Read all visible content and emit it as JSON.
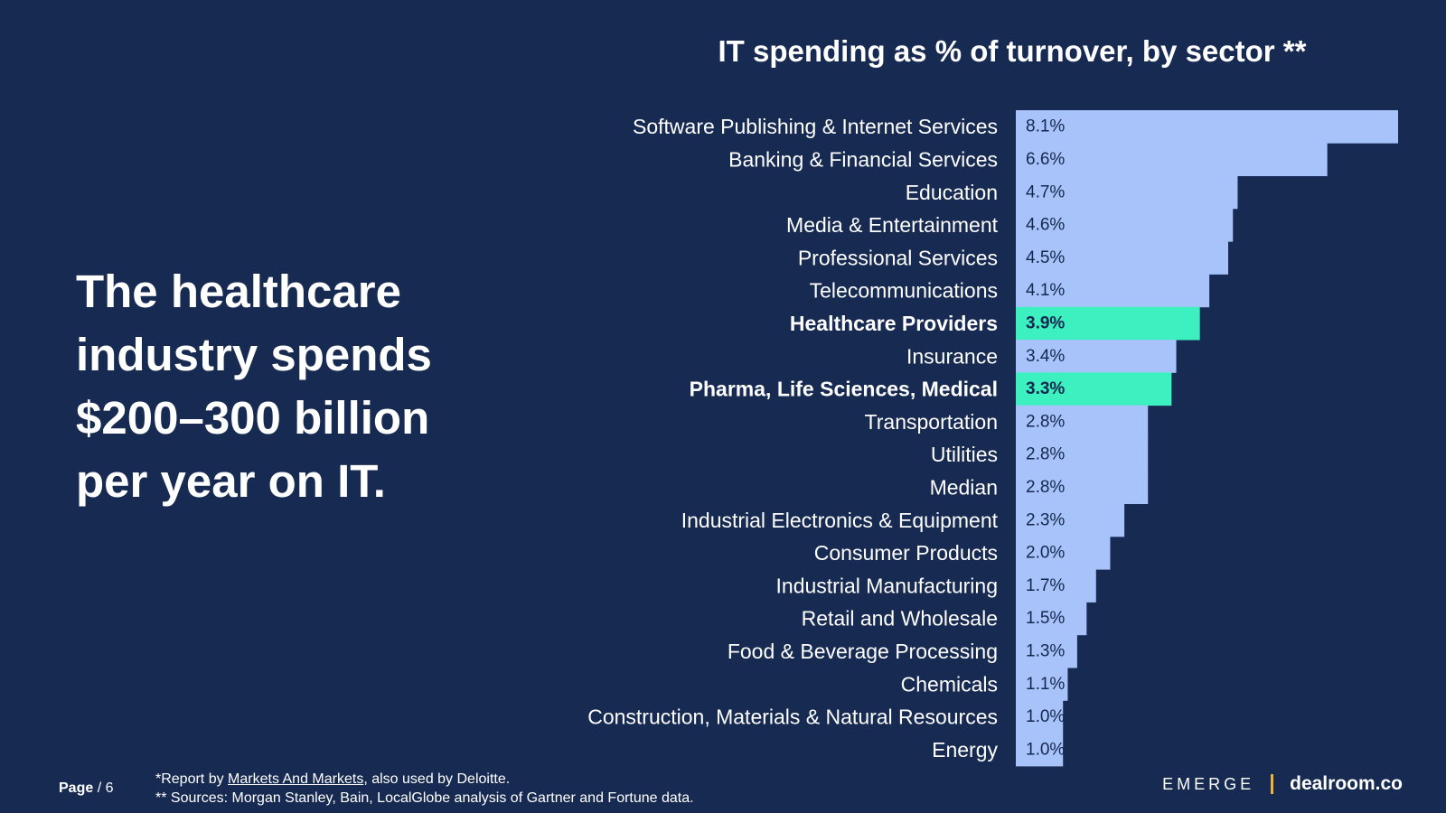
{
  "headline": [
    "The healthcare",
    "industry spends",
    "$200–300 billion",
    "per year on IT."
  ],
  "colors": {
    "background": "#172a52",
    "bar_default": "#a7c3fa",
    "bar_highlight": "#3df0c0",
    "text": "#ffffff",
    "value_text": "#14284f",
    "divider": "#f2b233"
  },
  "chart_data": {
    "type": "bar",
    "orientation": "horizontal",
    "title": "IT spending as % of turnover, by sector **",
    "categories": [
      "Software Publishing & Internet Services",
      "Banking & Financial Services",
      "Education",
      "Media & Entertainment",
      "Professional Services",
      "Telecommunications",
      "Healthcare Providers",
      "Insurance",
      "Pharma, Life Sciences, Medical",
      "Transportation",
      "Utilities",
      "Median",
      "Industrial Electronics & Equipment",
      "Consumer Products",
      "Industrial Manufacturing",
      "Retail and Wholesale",
      "Food & Beverage Processing",
      "Chemicals",
      "Construction, Materials & Natural Resources",
      "Energy"
    ],
    "values": [
      8.1,
      6.6,
      4.7,
      4.6,
      4.5,
      4.1,
      3.9,
      3.4,
      3.3,
      2.8,
      2.8,
      2.8,
      2.3,
      2.0,
      1.7,
      1.5,
      1.3,
      1.1,
      1.0,
      1.0
    ],
    "value_labels": [
      "8.1%",
      "6.6%",
      "4.7%",
      "4.6%",
      "4.5%",
      "4.1%",
      "3.9%",
      "3.4%",
      "3.3%",
      "2.8%",
      "2.8%",
      "2.8%",
      "2.3%",
      "2.0%",
      "1.7%",
      "1.5%",
      "1.3%",
      "1.1%",
      "1.0%",
      "1.0%"
    ],
    "highlighted": [
      "Healthcare Providers",
      "Pharma, Life Sciences, Medical"
    ],
    "xlim": [
      0,
      8.1
    ],
    "xlabel": "",
    "ylabel": ""
  },
  "footer": {
    "page_label": "Page",
    "page_number": "/ 6",
    "footnote1_prefix": "*Report by ",
    "footnote1_link": "Markets And Markets",
    "footnote1_suffix": ", also used by Deloitte.",
    "footnote2": "** Sources: Morgan Stanley, Bain, LocalGlobe analysis of Gartner and Fortune data.",
    "logo1": "EMERGE",
    "logo2": "dealroom.co"
  }
}
